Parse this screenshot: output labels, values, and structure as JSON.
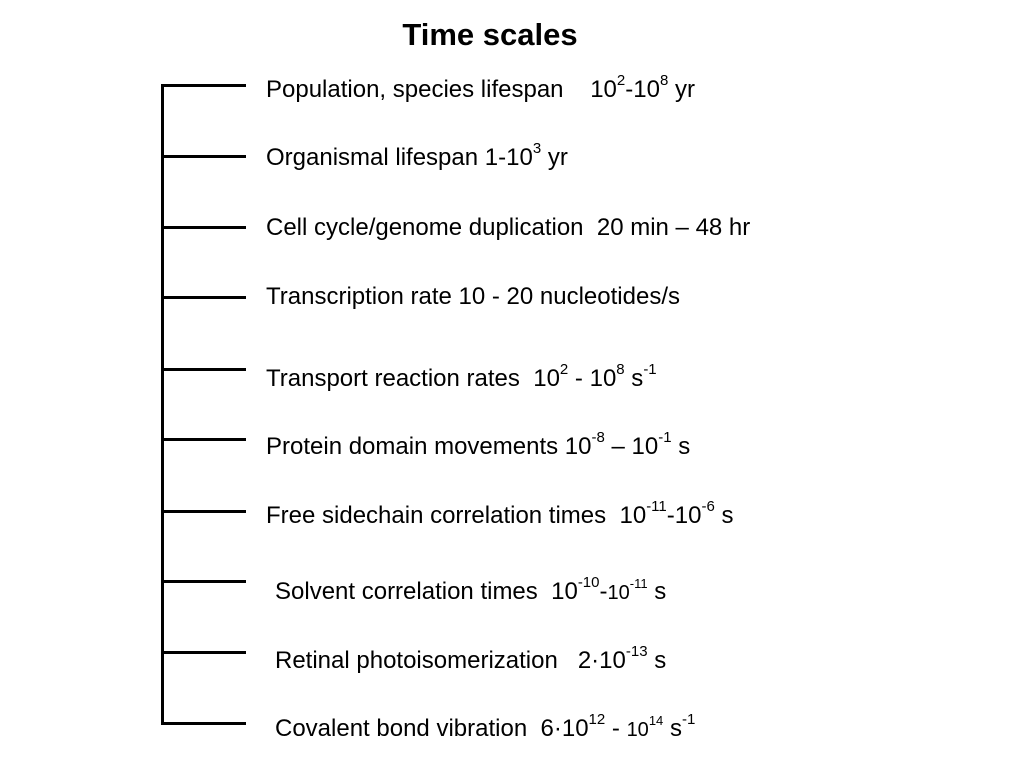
{
  "title": "Time scales",
  "entries": [
    {
      "parts": [
        {
          "t": "Population, species lifespan    10"
        },
        {
          "sup": "2"
        },
        {
          "t": "-10"
        },
        {
          "sup": "8"
        },
        {
          "t": " yr"
        }
      ]
    },
    {
      "parts": [
        {
          "t": "Organismal lifespan 1-10"
        },
        {
          "sup": "3"
        },
        {
          "t": " yr"
        }
      ]
    },
    {
      "parts": [
        {
          "t": "Cell cycle/genome duplication  20 min – 48 hr"
        }
      ]
    },
    {
      "parts": [
        {
          "t": "Transcription rate 10 - 20 nucleotides/s"
        }
      ]
    },
    {
      "parts": [
        {
          "t": "Transport reaction rates  10"
        },
        {
          "sup": "2"
        },
        {
          "t": " - 10"
        },
        {
          "sup": "8"
        },
        {
          "t": " s"
        },
        {
          "sup": "-1"
        }
      ]
    },
    {
      "parts": [
        {
          "t": "Protein domain movements 10"
        },
        {
          "sup": "-8"
        },
        {
          "t": " – 10"
        },
        {
          "sup": "-1"
        },
        {
          "t": " s"
        }
      ]
    },
    {
      "parts": [
        {
          "t": "Free sidechain correlation times  10"
        },
        {
          "sup": "-11"
        },
        {
          "t": "-10"
        },
        {
          "sup": "-6"
        },
        {
          "t": " s"
        }
      ]
    },
    {
      "parts": [
        {
          "t": "Solvent correlation times  10"
        },
        {
          "sup": "-10"
        },
        {
          "t": "-"
        },
        {
          "tsm": "10"
        },
        {
          "supsm": "-11"
        },
        {
          "t": " s"
        }
      ]
    },
    {
      "parts": [
        {
          "t": "Retinal photoisomerization   2·10"
        },
        {
          "sup": "-13"
        },
        {
          "t": " s"
        }
      ]
    },
    {
      "parts": [
        {
          "t": "Covalent bond vibration  6·10"
        },
        {
          "sup": "12"
        },
        {
          "t": " - "
        },
        {
          "tsm": "10"
        },
        {
          "supsm": "14"
        },
        {
          "t": " s"
        },
        {
          "sup": "-1"
        }
      ]
    }
  ]
}
